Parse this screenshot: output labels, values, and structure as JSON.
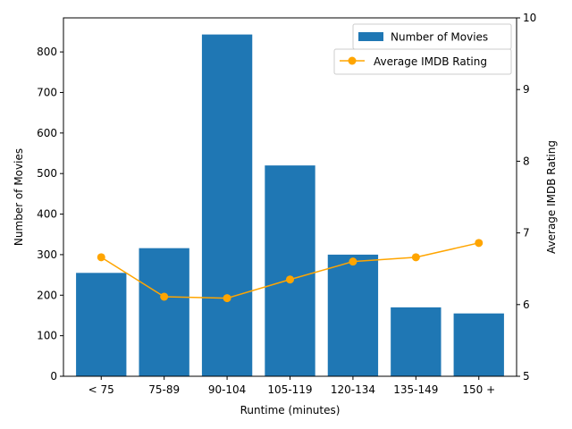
{
  "chart_data": {
    "type": "bar",
    "categories": [
      "< 75",
      "75-89",
      "90-104",
      "105-119",
      "120-134",
      "135-149",
      "150 +"
    ],
    "series": [
      {
        "name": "Number of Movies",
        "type": "bar",
        "axis": "left",
        "color": "#1f77b4",
        "values": [
          255,
          316,
          843,
          520,
          300,
          170,
          155
        ]
      },
      {
        "name": "Average IMDB Rating",
        "type": "line",
        "axis": "right",
        "color": "#ffa500",
        "values": [
          6.66,
          6.11,
          6.09,
          6.35,
          6.6,
          6.66,
          6.86
        ]
      }
    ],
    "xlabel": "Runtime (minutes)",
    "ylabel": "Number of Movies",
    "y2label": "Average IMDB Rating",
    "ylim": [
      0,
      884
    ],
    "y2lim": [
      5,
      10
    ],
    "yticks": [
      0,
      100,
      200,
      300,
      400,
      500,
      600,
      700,
      800
    ],
    "y2ticks": [
      5,
      6,
      7,
      8,
      9,
      10
    ],
    "grid": false,
    "legend_placement": "top-right"
  }
}
